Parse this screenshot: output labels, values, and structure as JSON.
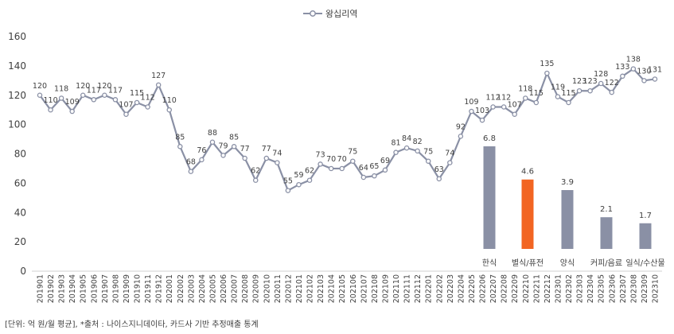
{
  "chart_data": [
    {
      "type": "line",
      "legend": "왕십리역",
      "legend_position": "top-center",
      "ylim": [
        0,
        160
      ],
      "yticks": [
        0,
        20,
        40,
        60,
        80,
        100,
        120,
        140,
        160
      ],
      "grid": false,
      "color": "#8a90a5",
      "x": [
        "201901",
        "201902",
        "201903",
        "201904",
        "201905",
        "201906",
        "201907",
        "201908",
        "201909",
        "201910",
        "201911",
        "201912",
        "202001",
        "202002",
        "202003",
        "202004",
        "202005",
        "202006",
        "202007",
        "202008",
        "202009",
        "202010",
        "202011",
        "202012",
        "202101",
        "202102",
        "202103",
        "202104",
        "202105",
        "202106",
        "202107",
        "202108",
        "202109",
        "202110",
        "202111",
        "202112",
        "202201",
        "202202",
        "202203",
        "202204",
        "202205",
        "202206",
        "202207",
        "202208",
        "202209",
        "202210",
        "202211",
        "202212",
        "202301",
        "202302",
        "202303",
        "202304",
        "202305",
        "202306",
        "202307",
        "202308",
        "202309",
        "202310"
      ],
      "values": [
        120,
        110,
        118,
        109,
        120,
        117,
        120,
        117,
        107,
        115,
        112,
        127,
        110,
        85,
        68,
        76,
        88,
        79,
        85,
        77,
        62,
        77,
        74,
        55,
        59,
        62,
        73,
        70,
        70,
        75,
        64,
        65,
        69,
        81,
        84,
        82,
        75,
        63,
        74,
        92,
        109,
        103,
        112,
        112,
        107,
        118,
        115,
        135,
        119,
        115,
        123,
        123,
        128,
        122,
        133,
        138,
        130,
        131
      ]
    },
    {
      "type": "bar",
      "categories": [
        "한식",
        "별식/퓨전",
        "양식",
        "커피/음료",
        "일식/수산물"
      ],
      "values": [
        6.8,
        4.6,
        3.9,
        2.1,
        1.7
      ],
      "colors": [
        "#8a90a5",
        "#f26522",
        "#8a90a5",
        "#8a90a5",
        "#8a90a5"
      ]
    }
  ],
  "footer": "[단위: 억 원/월 평균], *출처 : 나이스지니데이타, 카드사 기반 추정매출 통계"
}
